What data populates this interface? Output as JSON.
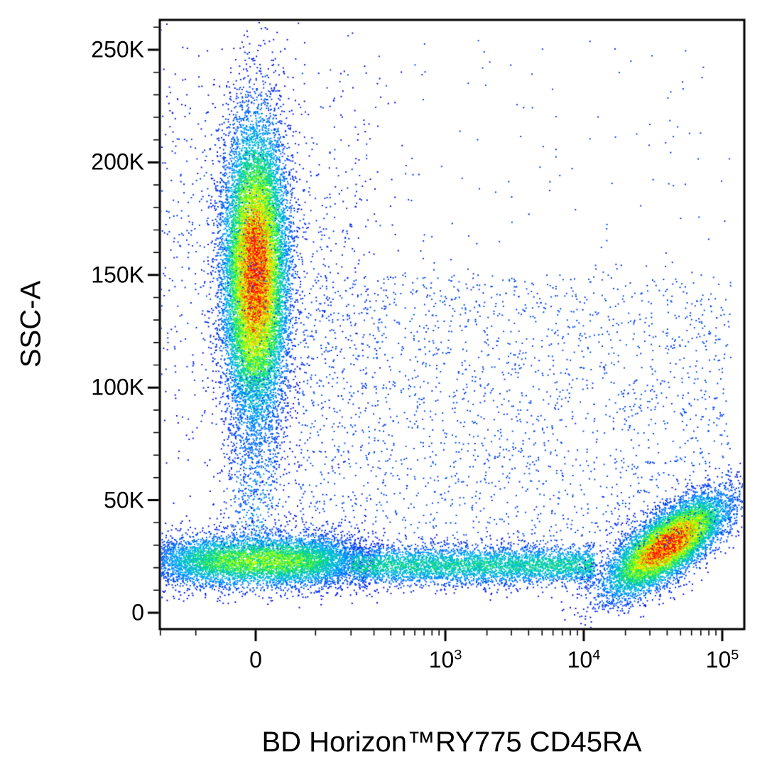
{
  "figure": {
    "background": "#ffffff"
  },
  "chart_data": {
    "type": "scatter",
    "subtype": "flow-cytometry-pseudocolor-density",
    "title": "",
    "x_axis": {
      "label": "BD Horizon™RY775 CD45RA",
      "scale": "biexponential",
      "major_ticks": [
        {
          "value": 0,
          "label": "0",
          "sup": ""
        },
        {
          "value": 1000,
          "label": "10",
          "sup": "3"
        },
        {
          "value": 10000,
          "label": "10",
          "sup": "4"
        },
        {
          "value": 100000,
          "label": "10",
          "sup": "5"
        }
      ],
      "minor_tick_values": [
        -200,
        -100,
        100,
        200,
        300,
        400,
        500,
        600,
        700,
        800,
        900,
        2000,
        3000,
        4000,
        5000,
        6000,
        7000,
        8000,
        9000,
        20000,
        30000,
        40000,
        50000,
        60000,
        70000,
        80000,
        90000
      ]
    },
    "y_axis": {
      "label": "SSC-A",
      "scale": "linear",
      "range": [
        0,
        262144
      ],
      "major_ticks": [
        {
          "value": 0,
          "label": "0"
        },
        {
          "value": 50000,
          "label": "50K"
        },
        {
          "value": 100000,
          "label": "100K"
        },
        {
          "value": 150000,
          "label": "150K"
        },
        {
          "value": 200000,
          "label": "200K"
        },
        {
          "value": 250000,
          "label": "250K"
        }
      ],
      "minor_tick_step": 10000
    },
    "colormap": {
      "stops": [
        {
          "t": 0.0,
          "color": "#0000ee"
        },
        {
          "t": 0.25,
          "color": "#00aaff"
        },
        {
          "t": 0.45,
          "color": "#00dc82"
        },
        {
          "t": 0.6,
          "color": "#7dff00"
        },
        {
          "t": 0.75,
          "color": "#ffff00"
        },
        {
          "t": 0.88,
          "color": "#ff8c00"
        },
        {
          "t": 1.0,
          "color": "#ff0000"
        }
      ]
    },
    "populations": [
      {
        "name": "ssc-high-cd45ra-neg",
        "shape": "gaussian",
        "x": {
          "center": 0,
          "sigma": 24
        },
        "y": {
          "center": 151000,
          "sigma": 33000
        },
        "count": 15000,
        "peak": 1.0
      },
      {
        "name": "ssc-high-halo",
        "shape": "gaussian",
        "x": {
          "center": 0,
          "sigma": 150
        },
        "y": {
          "center": 160000,
          "sigma": 48000
        },
        "count": 1000,
        "peak": 0.05
      },
      {
        "name": "low-ssc-cd45ra-neg",
        "shape": "gaussian",
        "x": {
          "center": 10,
          "sigma": 110
        },
        "y": {
          "center": 23000,
          "sigma": 6000
        },
        "count": 6500,
        "peak": 0.5
      },
      {
        "name": "low-ssc-band",
        "shape": "band",
        "x": {
          "min": 200,
          "max": 12000
        },
        "y": {
          "center": 21000,
          "sigma": 4500
        },
        "count": 4200,
        "peak": 0.3
      },
      {
        "name": "cd45ra-bright",
        "shape": "lognormal-x",
        "x": {
          "center": 40000,
          "log_sigma": 0.5
        },
        "y": {
          "center": 30000,
          "sigma": 7500,
          "tilt": 8000
        },
        "count": 9000,
        "peak": 1.0
      },
      {
        "name": "zero-column",
        "shape": "column",
        "x": {
          "center": 0,
          "sigma": 26
        },
        "y": {
          "min": 28000,
          "max": 105000
        },
        "count": 750,
        "peak": 0.12
      },
      {
        "name": "mid-scatter",
        "shape": "uniform",
        "x": {
          "min": 66,
          "max": 117000
        },
        "y": {
          "min": 28000,
          "max": 150000
        },
        "count": 2300,
        "peak": 0.05
      },
      {
        "name": "upper-scatter",
        "shape": "uniform",
        "x": {
          "min": 66,
          "max": 117000
        },
        "y": {
          "min": 150000,
          "max": 256000
        },
        "count": 140,
        "peak": 0.04
      }
    ]
  }
}
